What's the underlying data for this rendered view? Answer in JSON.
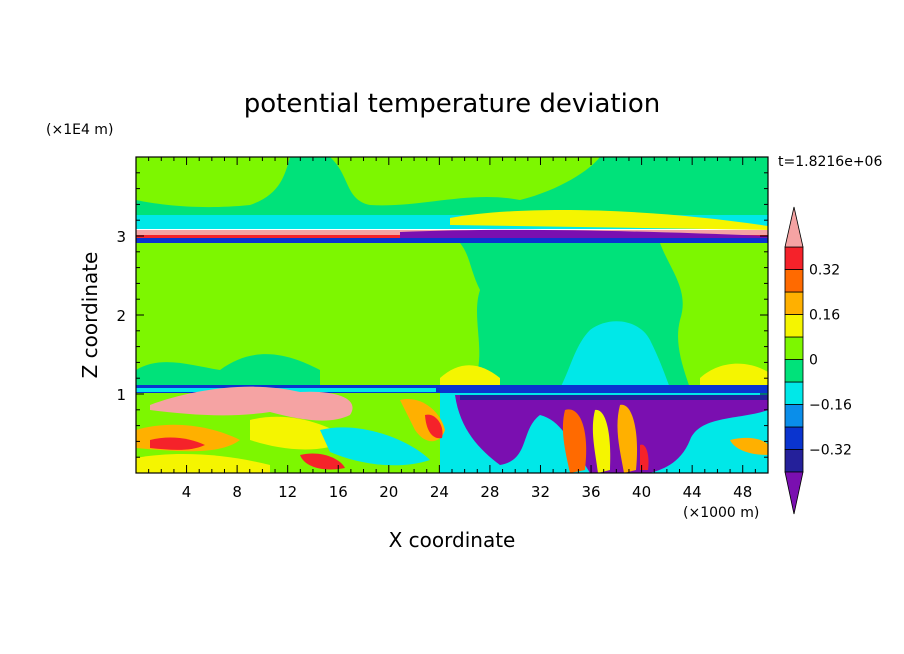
{
  "chart_data": {
    "type": "heatmap",
    "title": "potential temperature deviation",
    "xlabel": "X coordinate",
    "ylabel": "Z coordinate",
    "x_unit": "(×1000 m)",
    "y_unit": "(×1E4 m)",
    "time_label": "t=1.8216e+06",
    "xlim": [
      0,
      50
    ],
    "ylim": [
      0,
      4
    ],
    "x_ticks": [
      4,
      8,
      12,
      16,
      20,
      24,
      28,
      32,
      36,
      40,
      44,
      48
    ],
    "y_ticks": [
      1,
      2,
      3
    ],
    "colorbar": {
      "levels": [
        -0.4,
        -0.32,
        -0.24,
        -0.16,
        -0.08,
        0,
        0.08,
        0.16,
        0.24,
        0.32,
        0.4
      ],
      "labeled_ticks": [
        {
          "value": 0.32,
          "label": "0.32"
        },
        {
          "value": 0.16,
          "label": "0.16"
        },
        {
          "value": 0,
          "label": "0"
        },
        {
          "value": -0.16,
          "label": "−0.16"
        },
        {
          "value": -0.32,
          "label": "−0.32"
        }
      ],
      "colors": [
        "#7a0fb0",
        "#24209a",
        "#0a34cf",
        "#0a8eea",
        "#00e8e8",
        "#00e27a",
        "#7df700",
        "#f5f500",
        "#ffb000",
        "#ff6a00",
        "#f5222a",
        "#f5a3a3"
      ],
      "overflow_high_color": "#f5a3a3",
      "overflow_low_color": "#7a0fb0"
    },
    "grid": false
  }
}
